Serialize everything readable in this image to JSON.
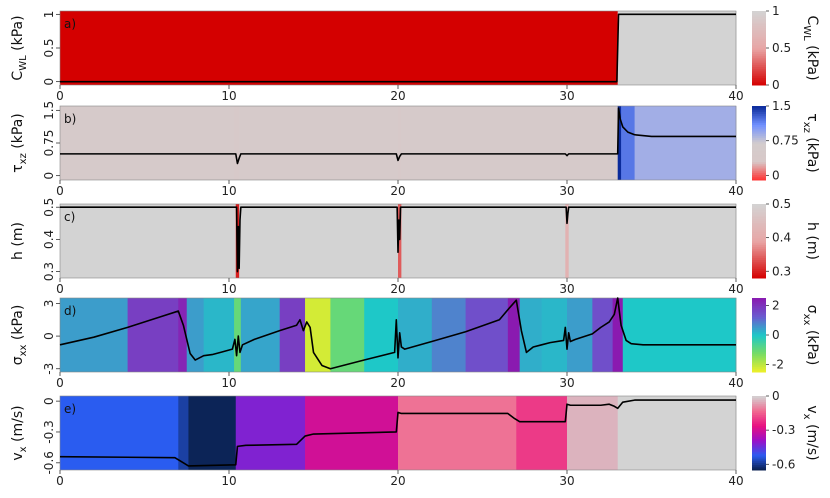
{
  "chart_data": [
    {
      "panel_label": "a)",
      "type": "line",
      "ylabel": "C",
      "ylabel_sub": "WL",
      "ylabel_unit": " (kPa)",
      "colorbar_label": "C",
      "colorbar_sub": "WL",
      "colorbar_unit": " (kPa)",
      "xlim": [
        0,
        40
      ],
      "ylim": [
        -0.05,
        1.05
      ],
      "x_ticks": [
        "0",
        "10",
        "20",
        "30",
        "40"
      ],
      "y_ticks": [
        {
          "v": 1,
          "t": "1"
        },
        {
          "v": 0.5,
          "t": "0.5"
        },
        {
          "v": 0,
          "t": "0"
        }
      ],
      "cbar_range": [
        0,
        1
      ],
      "cbar_ticks": [
        {
          "v": 1,
          "t": "1"
        },
        {
          "v": 0.5,
          "t": "0.5"
        },
        {
          "v": 0,
          "t": "0"
        }
      ],
      "colormap": [
        "#d40000",
        "#e8a6a6",
        "#d3d3d3"
      ],
      "background_segments": [
        [
          0,
          33.0,
          0.0
        ],
        [
          33.0,
          40,
          1.0
        ]
      ],
      "series": [
        {
          "x": [
            0,
            32.95,
            33.0,
            33.05,
            40
          ],
          "y": [
            0,
            0,
            0.5,
            1,
            1
          ]
        }
      ]
    },
    {
      "panel_label": "b)",
      "type": "line",
      "ylabel": "τ",
      "ylabel_sub": "xz",
      "ylabel_unit": " (kPa)",
      "colorbar_label": "τ",
      "colorbar_sub": "xz",
      "colorbar_unit": " (kPa)",
      "xlim": [
        0,
        40
      ],
      "ylim": [
        -0.1,
        1.6
      ],
      "x_ticks": [
        "0",
        "10",
        "20",
        "30",
        "40"
      ],
      "y_ticks": [
        {
          "v": 1.5,
          "t": "1.5"
        },
        {
          "v": 0.75,
          "t": "0.75"
        },
        {
          "v": 0,
          "t": "0"
        }
      ],
      "cbar_range": [
        -0.1,
        1.5
      ],
      "cbar_ticks": [
        {
          "v": 1.5,
          "t": "1.5"
        },
        {
          "v": 0.75,
          "t": "0.75"
        },
        {
          "v": 0,
          "t": "0"
        }
      ],
      "colormap": [
        "#ff3030",
        "#d8c8c8",
        "#d3cccc",
        "#7090ff",
        "#0a2a9a"
      ],
      "background_segments": [
        [
          0,
          10.3,
          0.5
        ],
        [
          10.3,
          10.6,
          0.35
        ],
        [
          10.6,
          20.0,
          0.5
        ],
        [
          20.0,
          20.2,
          0.4
        ],
        [
          20.2,
          33.0,
          0.5
        ],
        [
          33.0,
          33.2,
          1.5
        ],
        [
          33.2,
          34.0,
          1.2
        ],
        [
          34.0,
          40,
          0.9
        ]
      ],
      "series": [
        {
          "x": [
            0,
            10.4,
            10.5,
            10.6,
            10.7,
            19.9,
            20.0,
            20.1,
            20.2,
            29.9,
            30.0,
            30.1,
            33.0,
            33.05,
            33.15,
            33.3,
            33.6,
            34.0,
            35.0,
            40
          ],
          "y": [
            0.5,
            0.5,
            0.28,
            0.4,
            0.5,
            0.5,
            0.35,
            0.44,
            0.5,
            0.5,
            0.46,
            0.5,
            0.5,
            1.55,
            1.3,
            1.12,
            1.0,
            0.94,
            0.9,
            0.9
          ]
        }
      ]
    },
    {
      "panel_label": "c)",
      "type": "line",
      "ylabel": "h (m)",
      "ylabel_sub": "",
      "ylabel_unit": "",
      "colorbar_label": "h (m)",
      "colorbar_sub": "",
      "colorbar_unit": "",
      "xlim": [
        0,
        40
      ],
      "ylim": [
        0.28,
        0.51
      ],
      "x_ticks": [
        "0",
        "10",
        "20",
        "30",
        "40"
      ],
      "y_ticks": [
        {
          "v": 0.5,
          "t": "0.5"
        },
        {
          "v": 0.4,
          "t": "0.4"
        },
        {
          "v": 0.3,
          "t": "0.3"
        }
      ],
      "cbar_range": [
        0.28,
        0.5
      ],
      "cbar_ticks": [
        {
          "v": 0.5,
          "t": "0.5"
        },
        {
          "v": 0.4,
          "t": "0.4"
        },
        {
          "v": 0.3,
          "t": "0.3"
        }
      ],
      "colormap": [
        "#d40000",
        "#e8a6a6",
        "#d3d3d3"
      ],
      "background_segments": [
        [
          0,
          10.4,
          0.5
        ],
        [
          10.4,
          10.6,
          0.3
        ],
        [
          10.6,
          20.0,
          0.5
        ],
        [
          20.0,
          20.2,
          0.34
        ],
        [
          20.2,
          29.9,
          0.5
        ],
        [
          29.9,
          30.1,
          0.42
        ],
        [
          30.1,
          40,
          0.5
        ]
      ],
      "series": [
        {
          "x": [
            0,
            10.45,
            10.5,
            10.55,
            10.6,
            10.65,
            10.7,
            19.95,
            20.0,
            20.05,
            20.1,
            20.15,
            29.95,
            30.0,
            30.05,
            30.1,
            40
          ],
          "y": [
            0.5,
            0.5,
            0.3,
            0.44,
            0.31,
            0.46,
            0.5,
            0.5,
            0.36,
            0.46,
            0.4,
            0.5,
            0.5,
            0.45,
            0.48,
            0.5,
            0.5
          ]
        }
      ]
    },
    {
      "panel_label": "d)",
      "type": "line",
      "ylabel": "σ",
      "ylabel_sub": "xx",
      "ylabel_unit": " (kPa)",
      "colorbar_label": "σ",
      "colorbar_sub": "xx",
      "colorbar_unit": " (kPa)",
      "xlim": [
        0,
        40
      ],
      "ylim": [
        -3.3,
        3.5
      ],
      "x_ticks": [
        "0",
        "10",
        "20",
        "30",
        "40"
      ],
      "y_ticks": [
        {
          "v": 3,
          "t": "3"
        },
        {
          "v": 0,
          "t": "0"
        },
        {
          "v": -3,
          "t": "-3"
        }
      ],
      "cbar_range": [
        -2.5,
        2.5
      ],
      "cbar_ticks": [
        {
          "v": 2,
          "t": "2"
        },
        {
          "v": 0,
          "t": "0"
        },
        {
          "v": -2,
          "t": "-2"
        }
      ],
      "colormap": [
        "#f0f028",
        "#78dc64",
        "#1ec8c8",
        "#6a5cd0",
        "#8a1ab0"
      ],
      "background_segments": [
        [
          0,
          4,
          0.5
        ],
        [
          4,
          7,
          1.8
        ],
        [
          7,
          7.5,
          2.3
        ],
        [
          7.5,
          8.5,
          0.5
        ],
        [
          8.5,
          10.3,
          0.2
        ],
        [
          10.3,
          10.7,
          -1.0
        ],
        [
          10.7,
          13,
          0.4
        ],
        [
          13,
          14.5,
          1.8
        ],
        [
          14.5,
          16,
          -2.2
        ],
        [
          16,
          18,
          -1.0
        ],
        [
          18,
          20,
          0.0
        ],
        [
          20,
          22,
          0.3
        ],
        [
          22,
          24,
          0.8
        ],
        [
          24,
          26.5,
          1.5
        ],
        [
          26.5,
          27.2,
          2.5
        ],
        [
          27.2,
          28.5,
          0.3
        ],
        [
          28.5,
          30,
          0.2
        ],
        [
          30,
          31.5,
          0.5
        ],
        [
          31.5,
          32.7,
          1.5
        ],
        [
          32.7,
          33.3,
          2.5
        ],
        [
          33.3,
          40,
          0.0
        ]
      ],
      "series": [
        {
          "x": [
            0,
            2,
            4,
            6,
            7.0,
            7.3,
            7.7,
            8.0,
            8.5,
            9.0,
            9.5,
            10.2,
            10.35,
            10.45,
            10.55,
            10.65,
            10.8,
            11.5,
            13,
            14.0,
            14.2,
            14.4,
            14.6,
            14.8,
            15.0,
            15.5,
            16,
            18,
            19.8,
            19.9,
            20.0,
            20.1,
            20.2,
            20.4,
            22,
            24,
            26,
            26.6,
            27.0,
            27.3,
            27.6,
            28.0,
            28.5,
            29.0,
            29.8,
            29.9,
            30.0,
            30.1,
            30.2,
            30.5,
            31.5,
            32.0,
            32.5,
            32.8,
            33.0,
            33.2,
            33.5,
            33.8,
            34.5,
            36,
            40
          ],
          "y": [
            -0.8,
            -0.1,
            0.8,
            1.8,
            2.3,
            1.0,
            -1.6,
            -2.2,
            -1.8,
            -1.7,
            -1.5,
            -1.2,
            -0.3,
            -1.8,
            0.0,
            -1.5,
            -0.8,
            -0.3,
            0.5,
            1.0,
            1.5,
            0.5,
            1.3,
            0.8,
            -1.5,
            -2.7,
            -3.0,
            -2.2,
            -1.5,
            1.5,
            -2.0,
            0.3,
            -1.0,
            -1.2,
            -0.5,
            0.4,
            1.5,
            2.6,
            3.3,
            0.5,
            -1.5,
            -1.0,
            -0.8,
            -0.6,
            -0.4,
            0.8,
            -1.2,
            0.3,
            -0.5,
            -0.3,
            0.2,
            0.8,
            1.3,
            2.0,
            3.5,
            1.0,
            -0.4,
            -0.7,
            -0.8,
            -0.8,
            -0.8
          ]
        }
      ]
    },
    {
      "panel_label": "e)",
      "type": "line",
      "ylabel": "v",
      "ylabel_sub": "x",
      "ylabel_unit": " (m/s)",
      "colorbar_label": "v",
      "colorbar_sub": "x",
      "colorbar_unit": " (m/s)",
      "xlim": [
        0,
        40
      ],
      "ylim": [
        -0.67,
        0.05
      ],
      "x_ticks": [
        "0",
        "10",
        "20",
        "30",
        "40"
      ],
      "y_ticks": [
        {
          "v": 0,
          "t": "0"
        },
        {
          "v": -0.3,
          "t": "-0.3"
        },
        {
          "v": -0.6,
          "t": "-0.6"
        }
      ],
      "cbar_range": [
        -0.65,
        0
      ],
      "cbar_ticks": [
        {
          "v": 0,
          "t": "0"
        },
        {
          "v": -0.3,
          "t": "-0.3"
        },
        {
          "v": -0.6,
          "t": "-0.6"
        }
      ],
      "colormap": [
        "#0a1f4a",
        "#2a5cf0",
        "#9a10c8",
        "#e81080",
        "#f06a90",
        "#d3d3d3"
      ],
      "background_segments": [
        [
          0,
          7.0,
          -0.52
        ],
        [
          7.0,
          7.6,
          -0.58
        ],
        [
          7.6,
          10.4,
          -0.64
        ],
        [
          10.4,
          14.5,
          -0.42
        ],
        [
          14.5,
          20.0,
          -0.3
        ],
        [
          20.0,
          27.0,
          -0.12
        ],
        [
          27.0,
          30.0,
          -0.2
        ],
        [
          30.0,
          33.0,
          -0.04
        ],
        [
          33.0,
          40,
          0.0
        ]
      ],
      "series": [
        {
          "x": [
            0,
            6.8,
            7.3,
            7.6,
            10.4,
            10.5,
            11,
            14.0,
            14.5,
            15,
            19.9,
            20.0,
            20.2,
            26.5,
            26.9,
            27.2,
            29.9,
            30.0,
            30.2,
            32.0,
            32.5,
            32.8,
            33.0,
            33.3,
            34,
            40
          ],
          "y": [
            -0.54,
            -0.55,
            -0.6,
            -0.63,
            -0.62,
            -0.44,
            -0.43,
            -0.42,
            -0.34,
            -0.32,
            -0.3,
            -0.11,
            -0.12,
            -0.12,
            -0.17,
            -0.2,
            -0.2,
            -0.03,
            -0.04,
            -0.04,
            -0.03,
            -0.05,
            -0.07,
            -0.01,
            0.01,
            0.01
          ]
        }
      ]
    }
  ]
}
